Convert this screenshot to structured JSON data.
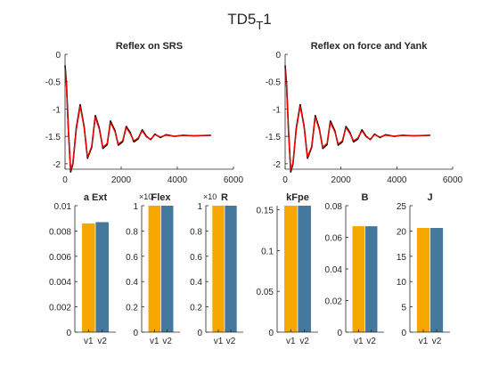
{
  "figure": {
    "title_main": "TD5",
    "title_sub": "T",
    "title_suffix": "1"
  },
  "colors": {
    "measured": "#000000",
    "model": "#ff0000",
    "v1": "#f5a600",
    "v2": "#44789c"
  },
  "chart_data": [
    {
      "type": "line",
      "title": "Reflex on SRS",
      "xlim": [
        0,
        6000
      ],
      "ylim": [
        -2.1,
        0
      ],
      "xticks": [
        0,
        2000,
        4000,
        6000
      ],
      "yticks": [
        0,
        -0.5,
        -1,
        -1.5,
        -2
      ],
      "xtick_labels": [
        "0",
        "2000",
        "4000",
        "6000"
      ],
      "ytick_labels": [
        "0",
        "-0.5",
        "-1",
        "-1.5",
        "-2"
      ],
      "signal_model": {
        "offset": -1.48,
        "amplitude": 1.2,
        "period_ms": 540,
        "decay_ms": 1500,
        "x_end": 5200
      },
      "series": [
        {
          "color_key": "measured",
          "x": [
            0,
            50,
            120,
            200,
            280,
            400,
            540,
            680,
            800,
            950,
            1080,
            1220,
            1350,
            1500,
            1620,
            1780,
            1900,
            2050,
            2180,
            2320,
            2450,
            2600,
            2750,
            2900,
            3050,
            3200,
            3400,
            3600,
            3900,
            4200,
            4600,
            5200
          ],
          "y": [
            -0.2,
            -0.55,
            -1.4,
            -2.15,
            -2.0,
            -1.35,
            -0.92,
            -1.32,
            -1.9,
            -1.7,
            -1.12,
            -1.35,
            -1.72,
            -1.65,
            -1.22,
            -1.4,
            -1.66,
            -1.6,
            -1.32,
            -1.43,
            -1.6,
            -1.55,
            -1.38,
            -1.5,
            -1.56,
            -1.46,
            -1.52,
            -1.47,
            -1.5,
            -1.48,
            -1.49,
            -1.48
          ]
        },
        {
          "color_key": "model",
          "x": [
            0,
            50,
            120,
            200,
            280,
            400,
            540,
            680,
            800,
            950,
            1080,
            1220,
            1350,
            1500,
            1620,
            1780,
            1900,
            2050,
            2180,
            2320,
            2450,
            2600,
            2750,
            2900,
            3050,
            3200,
            3400,
            3600,
            3900,
            4200,
            4600,
            5200
          ],
          "y": [
            -0.25,
            -0.6,
            -1.45,
            -2.12,
            -1.98,
            -1.38,
            -0.95,
            -1.34,
            -1.88,
            -1.68,
            -1.15,
            -1.37,
            -1.7,
            -1.63,
            -1.25,
            -1.42,
            -1.64,
            -1.58,
            -1.34,
            -1.45,
            -1.58,
            -1.53,
            -1.4,
            -1.51,
            -1.55,
            -1.47,
            -1.51,
            -1.48,
            -1.5,
            -1.48,
            -1.49,
            -1.48
          ]
        }
      ]
    },
    {
      "type": "line",
      "title": "Reflex on force and Yank",
      "xlim": [
        0,
        6000
      ],
      "ylim": [
        -2.1,
        0
      ],
      "xticks": [
        0,
        2000,
        4000,
        6000
      ],
      "yticks": [
        0,
        -0.5,
        -1,
        -1.5,
        -2
      ],
      "xtick_labels": [
        "0",
        "2000",
        "4000",
        "6000"
      ],
      "ytick_labels": [
        "0",
        "-0.5",
        "-1",
        "-1.5",
        "-2"
      ],
      "series": [
        {
          "color_key": "measured",
          "x": [
            0,
            50,
            120,
            200,
            280,
            400,
            540,
            680,
            800,
            950,
            1080,
            1220,
            1350,
            1500,
            1620,
            1780,
            1900,
            2050,
            2180,
            2320,
            2450,
            2600,
            2750,
            2900,
            3050,
            3200,
            3400,
            3600,
            3900,
            4200,
            4600,
            5200
          ],
          "y": [
            -0.2,
            -0.55,
            -1.4,
            -2.15,
            -2.0,
            -1.35,
            -0.92,
            -1.32,
            -1.9,
            -1.7,
            -1.12,
            -1.35,
            -1.72,
            -1.65,
            -1.22,
            -1.4,
            -1.66,
            -1.6,
            -1.32,
            -1.43,
            -1.6,
            -1.55,
            -1.38,
            -1.5,
            -1.56,
            -1.46,
            -1.52,
            -1.47,
            -1.5,
            -1.48,
            -1.49,
            -1.48
          ]
        },
        {
          "color_key": "model",
          "x": [
            0,
            50,
            120,
            200,
            280,
            400,
            540,
            680,
            800,
            950,
            1080,
            1220,
            1350,
            1500,
            1620,
            1780,
            1900,
            2050,
            2180,
            2320,
            2450,
            2600,
            2750,
            2900,
            3050,
            3200,
            3400,
            3600,
            3900,
            4200,
            4600,
            5200
          ],
          "y": [
            -0.25,
            -0.6,
            -1.45,
            -2.12,
            -1.98,
            -1.38,
            -0.95,
            -1.34,
            -1.88,
            -1.68,
            -1.15,
            -1.37,
            -1.7,
            -1.63,
            -1.25,
            -1.42,
            -1.64,
            -1.58,
            -1.34,
            -1.45,
            -1.58,
            -1.53,
            -1.4,
            -1.51,
            -1.55,
            -1.47,
            -1.51,
            -1.48,
            -1.5,
            -1.48,
            -1.49,
            -1.48
          ]
        }
      ]
    },
    {
      "type": "bar",
      "title": "a Ext",
      "categories": [
        "v1",
        "v2"
      ],
      "values": [
        0.0086,
        0.0087
      ],
      "ylim": [
        0,
        0.01
      ],
      "yticks": [
        0,
        0.002,
        0.004,
        0.006,
        0.008,
        0.01
      ],
      "ytick_labels": [
        "0",
        "0.002",
        "0.004",
        "0.006",
        "0.008",
        "0.01"
      ]
    },
    {
      "type": "bar",
      "title": "Flex",
      "exponent_label": "×10",
      "categories": [
        "v1",
        "v2"
      ],
      "values": [
        1,
        1
      ],
      "ylim": [
        0,
        1
      ],
      "yticks": [
        0,
        0.2,
        0.4,
        0.6,
        0.8,
        1
      ],
      "ytick_labels": [
        "0",
        "0.2",
        "0.4",
        "0.6",
        "0.8",
        "1"
      ]
    },
    {
      "type": "bar",
      "title": "R",
      "exponent_label": "×10",
      "categories": [
        "v1",
        "v2"
      ],
      "values": [
        1,
        1
      ],
      "ylim": [
        0,
        1
      ],
      "yticks": [
        0,
        0.2,
        0.4,
        0.6,
        0.8,
        1
      ],
      "ytick_labels": [
        "0",
        "0.2",
        "0.4",
        "0.6",
        "0.8",
        "1"
      ]
    },
    {
      "type": "bar",
      "title": "kFpe",
      "categories": [
        "v1",
        "v2"
      ],
      "values": [
        0.155,
        0.155
      ],
      "ylim": [
        0,
        0.155
      ],
      "yticks": [
        0,
        0.05,
        0.1,
        0.15
      ],
      "ytick_labels": [
        "0",
        "0.05",
        "0.1",
        "0.15"
      ]
    },
    {
      "type": "bar",
      "title": "B",
      "categories": [
        "v1",
        "v2"
      ],
      "values": [
        0.067,
        0.067
      ],
      "ylim": [
        0,
        0.08
      ],
      "yticks": [
        0,
        0.02,
        0.04,
        0.06,
        0.08
      ],
      "ytick_labels": [
        "0",
        "0.02",
        "0.04",
        "0.06",
        "0.08"
      ]
    },
    {
      "type": "bar",
      "title": "J",
      "categories": [
        "v1",
        "v2"
      ],
      "values": [
        20.6,
        20.6
      ],
      "ylim": [
        0,
        25
      ],
      "yticks": [
        0,
        5,
        10,
        15,
        20,
        25
      ],
      "ytick_labels": [
        "0",
        "5",
        "10",
        "15",
        "20",
        "25"
      ]
    }
  ]
}
